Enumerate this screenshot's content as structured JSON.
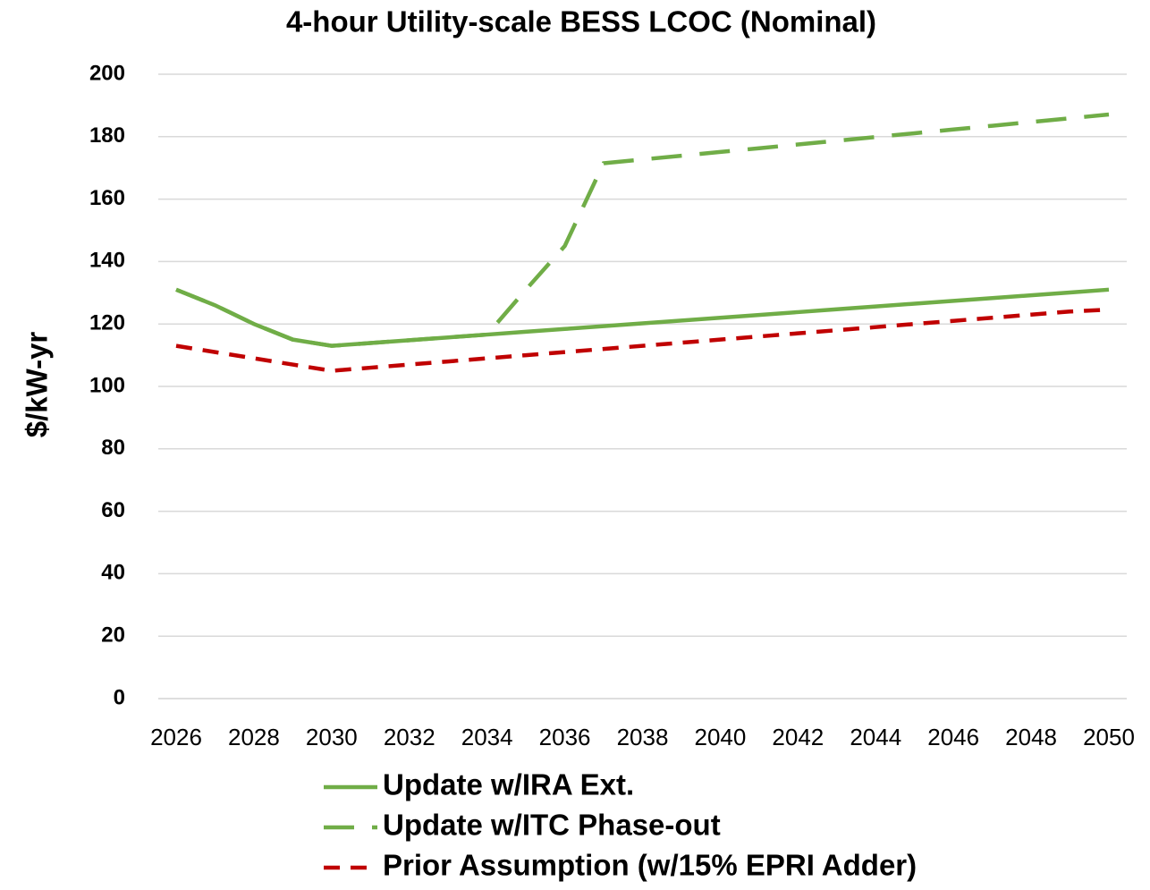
{
  "chart_data": {
    "type": "line",
    "title": "4-hour Utility-scale BESS LCOC (Nominal)",
    "y_label": "$/kW-yr",
    "x": [
      2026,
      2027,
      2028,
      2029,
      2030,
      2031,
      2032,
      2033,
      2034,
      2035,
      2036,
      2037,
      2038,
      2039,
      2040,
      2041,
      2042,
      2043,
      2044,
      2045,
      2046,
      2047,
      2048,
      2049,
      2050
    ],
    "xlim": [
      2026,
      2050
    ],
    "xticks": [
      2026,
      2028,
      2030,
      2032,
      2034,
      2036,
      2038,
      2040,
      2042,
      2044,
      2046,
      2048,
      2050
    ],
    "ylim": [
      0,
      200
    ],
    "yticks": [
      0,
      20,
      40,
      60,
      80,
      100,
      120,
      140,
      160,
      180,
      200
    ],
    "grid": true,
    "legend": "bottom",
    "series": [
      {
        "name": "Update w/IRA Ext.",
        "color": "#70ad47",
        "dash": "solid",
        "values": [
          131,
          126,
          120,
          115,
          113,
          113.9,
          114.8,
          115.7,
          116.6,
          117.5,
          118.4,
          119.3,
          120.2,
          121.1,
          122,
          122.9,
          123.8,
          124.7,
          125.6,
          126.5,
          127.4,
          128.3,
          129.2,
          130.1,
          131
        ]
      },
      {
        "name": "Update w/ITC Phase-out",
        "color": "#70ad47",
        "dash": "long-dash",
        "values": [
          131,
          126,
          120,
          115,
          113,
          113.9,
          114.8,
          115.7,
          116.6,
          131,
          145,
          171.5,
          172.7,
          173.9,
          175.1,
          176.3,
          177.5,
          178.7,
          179.9,
          181.1,
          182.3,
          183.5,
          184.7,
          185.9,
          187.1
        ]
      },
      {
        "name": "Prior Assumption (w/15% EPRI Adder)",
        "color": "#c00000",
        "dash": "dash",
        "values": [
          113,
          111,
          109,
          107,
          105,
          106,
          107,
          108,
          109,
          110,
          111,
          112,
          113,
          114,
          115,
          116,
          117,
          118,
          119,
          120,
          121,
          122,
          123,
          124,
          124.6
        ]
      }
    ]
  }
}
